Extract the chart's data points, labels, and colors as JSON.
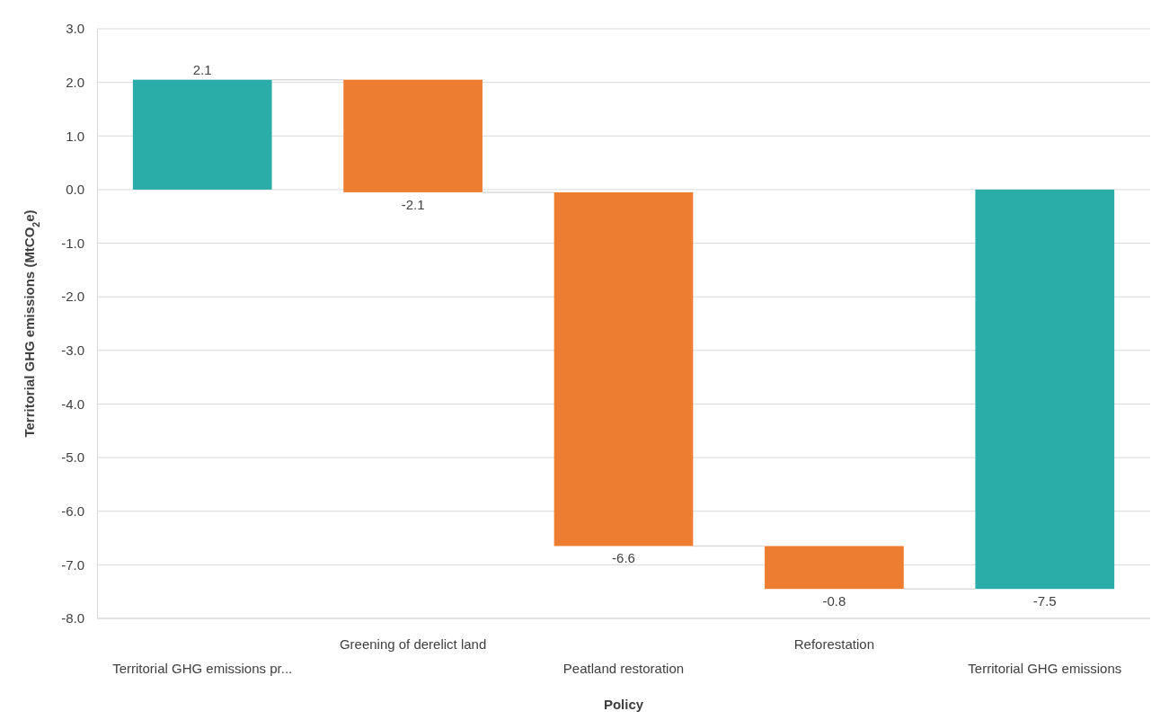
{
  "chart_data": {
    "type": "bar",
    "xlabel": "Policy",
    "ylabel": "Territorial GHG emissions (MtCO$_{2}$e)",
    "categories": [
      "Territorial GHG emissions pr...",
      "Greening of derelict land",
      "Peatland restoration",
      "Reforestation",
      "Territorial GHG emissions"
    ],
    "values": [
      2.05,
      -2.1,
      -6.6,
      -0.8,
      -7.45
    ],
    "base": [
      0,
      2.05,
      -0.05,
      -6.65,
      0
    ],
    "value_labels": [
      "2.1",
      "-2.1",
      "-6.6",
      "-0.8",
      "-7.5"
    ],
    "colors": [
      "#2aaca8",
      "#ed7d31",
      "#ed7d31",
      "#ed7d31",
      "#2aaca8"
    ],
    "ylim": [
      -8,
      3
    ],
    "yticks": [
      {
        "value": 3,
        "label": "3.0"
      },
      {
        "value": 2,
        "label": "2.0"
      },
      {
        "value": 1,
        "label": "1.0"
      },
      {
        "value": 0,
        "label": "0.0"
      },
      {
        "value": -1,
        "label": "-1.0"
      },
      {
        "value": -2,
        "label": "-2.0"
      },
      {
        "value": -3,
        "label": "-3.0"
      },
      {
        "value": -4,
        "label": "-4.0"
      },
      {
        "value": -5,
        "label": "-5.0"
      },
      {
        "value": -6,
        "label": "-6.0"
      },
      {
        "value": -7,
        "label": "-7.0"
      },
      {
        "value": -8,
        "label": "-8.0"
      }
    ],
    "grid": "y"
  }
}
